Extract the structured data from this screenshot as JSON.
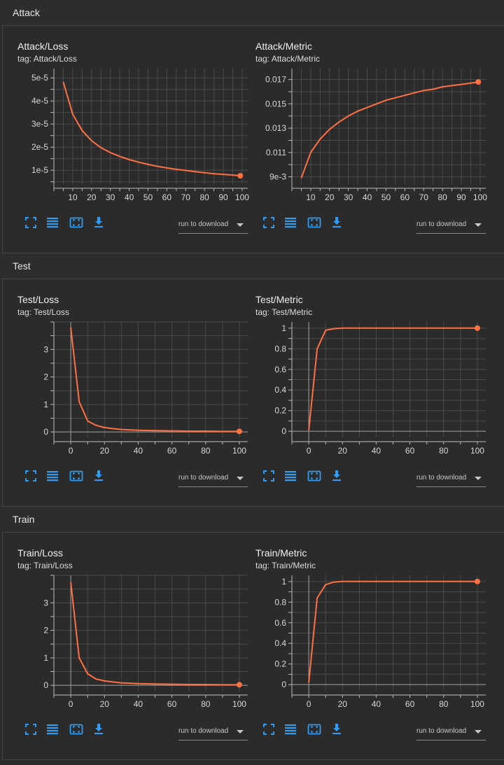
{
  "colors": {
    "background": "#2d2d2d",
    "grid": "#4a4a4a",
    "axis": "#bdbdbd",
    "series": "#ff7043",
    "icon_accent": "#2f9df4"
  },
  "toolbar": {
    "icons": [
      "fullscreen-icon",
      "data-table-icon",
      "fit-domain-icon",
      "download-icon"
    ],
    "run_select_label": "run to download"
  },
  "sections": [
    {
      "title": "Attack",
      "cards": [
        {
          "title": "Attack/Loss",
          "tag": "tag: Attack/Loss",
          "chart_data": {
            "type": "line",
            "xlim": [
              0,
              103
            ],
            "ylim": [
              4e-06,
              5.4e-05
            ],
            "xticks": [
              10,
              20,
              30,
              40,
              50,
              60,
              70,
              80,
              90,
              100
            ],
            "xtick_labels": [
              "10",
              "20",
              "30",
              "40",
              "50",
              "60",
              "70",
              "80",
              "90",
              "100"
            ],
            "yticks": [
              1e-05,
              2e-05,
              3e-05,
              4e-05,
              5e-05
            ],
            "ytick_labels": [
              "1e-5",
              "2e-5",
              "3e-5",
              "4e-5",
              "5e-5"
            ],
            "show_zero_axis": false,
            "grid": true,
            "x": [
              5,
              10,
              15,
              20,
              25,
              30,
              35,
              40,
              45,
              50,
              55,
              60,
              65,
              70,
              75,
              80,
              85,
              90,
              95,
              99
            ],
            "y": [
              4.82e-05,
              3.42e-05,
              2.72e-05,
              2.28e-05,
              1.98e-05,
              1.76e-05,
              1.6e-05,
              1.46e-05,
              1.35e-05,
              1.25e-05,
              1.17e-05,
              1.1e-05,
              1.04e-05,
              9.9e-06,
              9.4e-06,
              8.9e-06,
              8.5e-06,
              8.2e-06,
              7.9e-06,
              7.6e-06
            ]
          }
        },
        {
          "title": "Attack/Metric",
          "tag": "tag: Attack/Metric",
          "chart_data": {
            "type": "line",
            "xlim": [
              0,
              103
            ],
            "ylim": [
              0.0084,
              0.0179
            ],
            "xticks": [
              10,
              20,
              30,
              40,
              50,
              60,
              70,
              80,
              90,
              100
            ],
            "xtick_labels": [
              "10",
              "20",
              "30",
              "40",
              "50",
              "60",
              "70",
              "80",
              "90",
              "100"
            ],
            "yticks": [
              0.009,
              0.011,
              0.013,
              0.015,
              0.017
            ],
            "ytick_labels": [
              "9e-3",
              "0.011",
              "0.013",
              "0.015",
              "0.017"
            ],
            "show_zero_axis": false,
            "grid": true,
            "x": [
              5,
              10,
              15,
              20,
              25,
              30,
              35,
              40,
              45,
              50,
              55,
              60,
              65,
              70,
              75,
              80,
              85,
              90,
              95,
              99
            ],
            "y": [
              0.0089,
              0.011,
              0.0121,
              0.0129,
              0.0135,
              0.014,
              0.0144,
              0.0147,
              0.015,
              0.0153,
              0.0155,
              0.0157,
              0.0159,
              0.0161,
              0.0162,
              0.0164,
              0.0165,
              0.0166,
              0.0167,
              0.0168
            ]
          }
        }
      ]
    },
    {
      "title": "Test",
      "cards": [
        {
          "title": "Test/Loss",
          "tag": "tag: Test/Loss",
          "chart_data": {
            "type": "line",
            "xlim": [
              -10,
              105
            ],
            "ylim": [
              -0.2,
              4.0
            ],
            "xticks": [
              0,
              20,
              40,
              60,
              80,
              100
            ],
            "xtick_labels": [
              "0",
              "20",
              "40",
              "60",
              "80",
              "100"
            ],
            "yticks": [
              0,
              1,
              2,
              3
            ],
            "ytick_labels": [
              "0",
              "1",
              "2",
              "3"
            ],
            "show_zero_axis": true,
            "grid": true,
            "x": [
              0,
              5,
              10,
              15,
              20,
              25,
              30,
              40,
              50,
              60,
              70,
              80,
              90,
              100
            ],
            "y": [
              3.8,
              1.1,
              0.4,
              0.24,
              0.16,
              0.12,
              0.09,
              0.06,
              0.05,
              0.04,
              0.03,
              0.03,
              0.02,
              0.02
            ]
          }
        },
        {
          "title": "Test/Metric",
          "tag": "tag: Test/Metric",
          "chart_data": {
            "type": "line",
            "xlim": [
              -10,
              105
            ],
            "ylim": [
              -0.06,
              1.06
            ],
            "xticks": [
              0,
              20,
              40,
              60,
              80,
              100
            ],
            "xtick_labels": [
              "0",
              "20",
              "40",
              "60",
              "80",
              "100"
            ],
            "yticks": [
              0,
              0.2,
              0.4,
              0.6,
              0.8,
              1
            ],
            "ytick_labels": [
              "0",
              "0.2",
              "0.4",
              "0.6",
              "0.8",
              "1"
            ],
            "show_zero_axis": true,
            "grid": true,
            "x": [
              0,
              5,
              10,
              15,
              20,
              25,
              30,
              40,
              50,
              60,
              70,
              80,
              90,
              100
            ],
            "y": [
              0.01,
              0.8,
              0.98,
              0.995,
              1,
              1,
              1,
              1,
              1,
              1,
              1,
              1,
              1,
              1
            ]
          }
        }
      ]
    },
    {
      "title": "Train",
      "cards": [
        {
          "title": "Train/Loss",
          "tag": "tag: Train/Loss",
          "chart_data": {
            "type": "line",
            "xlim": [
              -10,
              105
            ],
            "ylim": [
              -0.2,
              4.0
            ],
            "xticks": [
              0,
              20,
              40,
              60,
              80,
              100
            ],
            "xtick_labels": [
              "0",
              "20",
              "40",
              "60",
              "80",
              "100"
            ],
            "yticks": [
              0,
              1,
              2,
              3
            ],
            "ytick_labels": [
              "0",
              "1",
              "2",
              "3"
            ],
            "show_zero_axis": true,
            "grid": true,
            "x": [
              0,
              5,
              10,
              15,
              20,
              25,
              30,
              40,
              50,
              60,
              70,
              80,
              90,
              100
            ],
            "y": [
              3.75,
              1.0,
              0.42,
              0.23,
              0.16,
              0.12,
              0.09,
              0.06,
              0.05,
              0.04,
              0.03,
              0.03,
              0.02,
              0.02
            ]
          }
        },
        {
          "title": "Train/Metric",
          "tag": "tag: Train/Metric",
          "chart_data": {
            "type": "line",
            "xlim": [
              -10,
              105
            ],
            "ylim": [
              -0.06,
              1.06
            ],
            "xticks": [
              0,
              20,
              40,
              60,
              80,
              100
            ],
            "xtick_labels": [
              "0",
              "20",
              "40",
              "60",
              "80",
              "100"
            ],
            "yticks": [
              0,
              0.2,
              0.4,
              0.6,
              0.8,
              1
            ],
            "ytick_labels": [
              "0",
              "0.2",
              "0.4",
              "0.6",
              "0.8",
              "1"
            ],
            "show_zero_axis": true,
            "grid": true,
            "x": [
              0,
              5,
              10,
              15,
              20,
              25,
              30,
              40,
              50,
              60,
              70,
              80,
              90,
              100
            ],
            "y": [
              0.02,
              0.84,
              0.97,
              0.995,
              1,
              1,
              1,
              1,
              1,
              1,
              1,
              1,
              1,
              1
            ]
          }
        }
      ]
    }
  ]
}
